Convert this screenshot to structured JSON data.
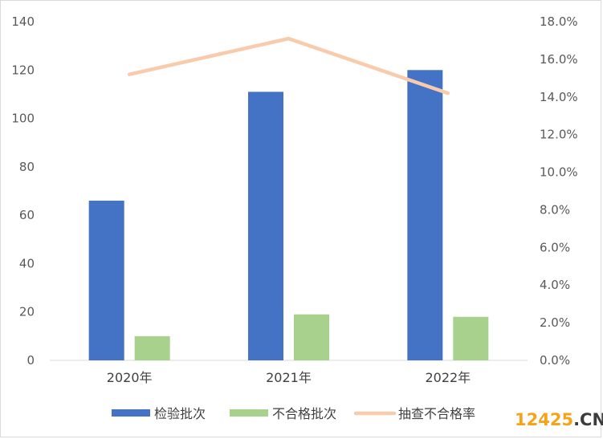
{
  "chart_data": {
    "type": "bar",
    "categories": [
      "2020年",
      "2021年",
      "2022年"
    ],
    "series": [
      {
        "name": "检验批次",
        "type": "bar",
        "axis": "left",
        "values": [
          66,
          111,
          120
        ],
        "color": "#4472c4"
      },
      {
        "name": "不合格批次",
        "type": "bar",
        "axis": "left",
        "values": [
          10,
          19,
          18
        ],
        "color": "#a9d18e"
      },
      {
        "name": "抽查不合格率",
        "type": "line",
        "axis": "right",
        "values": [
          15.2,
          17.1,
          14.2
        ],
        "unit": "%",
        "color": "#f8cbad"
      }
    ],
    "ylim": [
      0,
      140
    ],
    "yticks": [
      "0",
      "20",
      "40",
      "60",
      "80",
      "100",
      "120",
      "140"
    ],
    "y2lim": [
      0,
      18
    ],
    "y2ticks": [
      "0.0%",
      "2.0%",
      "4.0%",
      "6.0%",
      "8.0%",
      "10.0%",
      "12.0%",
      "14.0%",
      "16.0%",
      "18.0%"
    ],
    "grid": false,
    "legend_position": "bottom",
    "title": "",
    "xlabel": "",
    "ylabel": ""
  },
  "watermark": {
    "number": "12425",
    "domain": ".CN",
    "number_color": "#f7a21b",
    "domain_color": "#3c3c3c"
  }
}
